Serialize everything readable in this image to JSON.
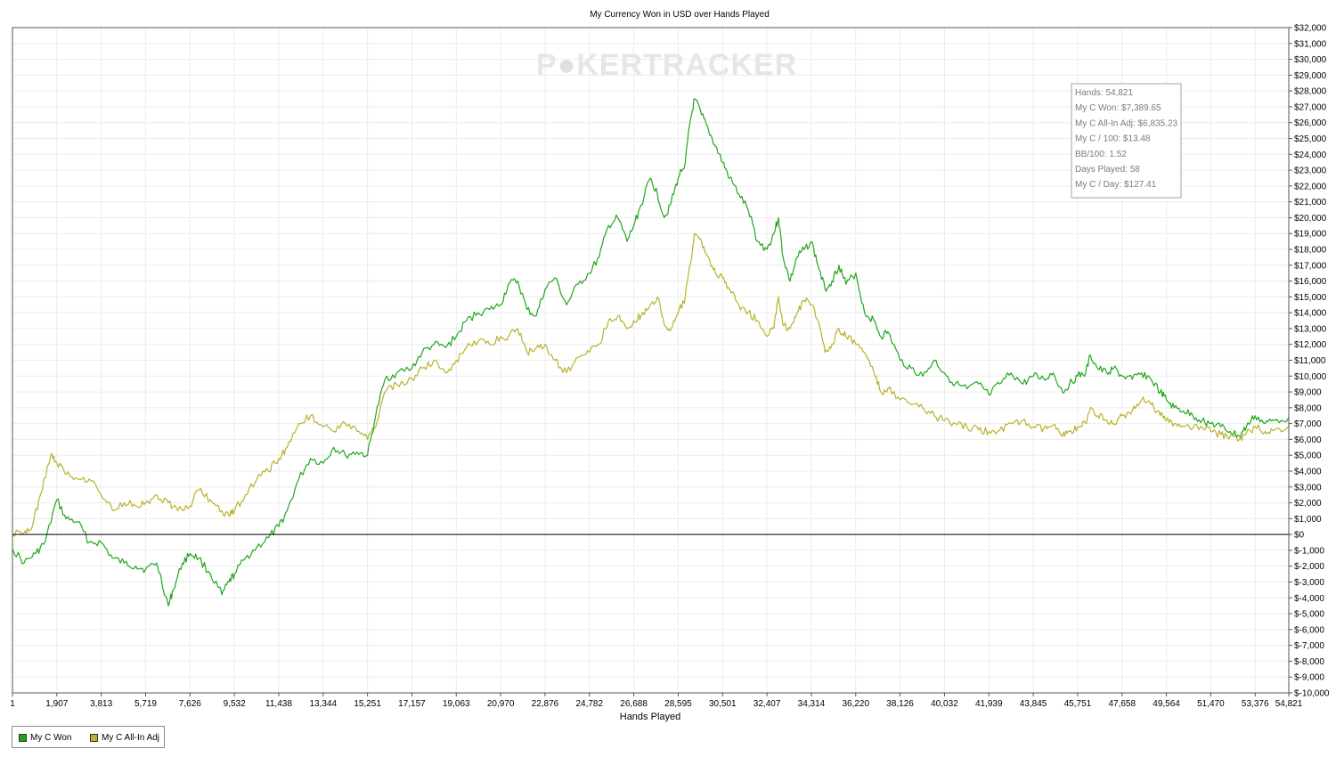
{
  "colors": {
    "won": "#22a51c",
    "allin": "#b8b22c",
    "grid": "#ececec",
    "zero_line": "#000000",
    "watermark": "#e6e6e6",
    "watermark_o": "#e0e0e0"
  },
  "watermark": {
    "left": "P",
    "icon": "poker-chip-icon",
    "right": "KER",
    "tail": "TRACKER"
  },
  "info_box": {
    "lines": [
      "Hands: 54,821",
      "My C Won: $7,389.65",
      "My C All-In Adj: $6,835.23",
      "My C / 100: $13.48",
      "BB/100: 1.52",
      "Days Played: 58",
      "My C / Day: $127.41"
    ]
  },
  "chart_data": {
    "type": "line",
    "title": "My Currency Won in USD over Hands Played",
    "xlabel": "Hands Played",
    "ylabel": "",
    "xlim": [
      1,
      54821
    ],
    "ylim": [
      -10000,
      32000
    ],
    "y_ticks": [
      -10000,
      -9000,
      -8000,
      -7000,
      -6000,
      -5000,
      -4000,
      -3000,
      -2000,
      -1000,
      0,
      1000,
      2000,
      3000,
      4000,
      5000,
      6000,
      7000,
      8000,
      9000,
      10000,
      11000,
      12000,
      13000,
      14000,
      15000,
      16000,
      17000,
      18000,
      19000,
      20000,
      21000,
      22000,
      23000,
      24000,
      25000,
      26000,
      27000,
      28000,
      29000,
      30000,
      31000,
      32000
    ],
    "y_tick_labels": [
      "$-10,000",
      "$-9,000",
      "$-8,000",
      "$-7,000",
      "$-6,000",
      "$-5,000",
      "$-4,000",
      "$-3,000",
      "$-2,000",
      "$-1,000",
      "$0",
      "$1,000",
      "$2,000",
      "$3,000",
      "$4,000",
      "$5,000",
      "$6,000",
      "$7,000",
      "$8,000",
      "$9,000",
      "$10,000",
      "$11,000",
      "$12,000",
      "$13,000",
      "$14,000",
      "$15,000",
      "$16,000",
      "$17,000",
      "$18,000",
      "$19,000",
      "$20,000",
      "$21,000",
      "$22,000",
      "$23,000",
      "$24,000",
      "$25,000",
      "$26,000",
      "$27,000",
      "$28,000",
      "$29,000",
      "$30,000",
      "$31,000",
      "$32,000"
    ],
    "x_ticks": [
      1,
      1907,
      3813,
      5719,
      7626,
      9532,
      11438,
      13344,
      15251,
      17157,
      19063,
      20970,
      22876,
      24782,
      26688,
      28595,
      30501,
      32407,
      34314,
      36220,
      38126,
      40032,
      41939,
      43845,
      45751,
      47658,
      49564,
      51470,
      53376,
      54821
    ],
    "x_tick_labels": [
      "1",
      "1,907",
      "3,813",
      "5,719",
      "7,626",
      "9,532",
      "11,438",
      "13,344",
      "15,251",
      "17,157",
      "19,063",
      "20,970",
      "22,876",
      "24,782",
      "26,688",
      "28,595",
      "30,501",
      "32,407",
      "34,314",
      "36,220",
      "38,126",
      "40,032",
      "41,939",
      "43,845",
      "45,751",
      "47,658",
      "49,564",
      "51,470",
      "53,376",
      "54,821"
    ],
    "grid": true,
    "legend_position": "bottom-left",
    "series": [
      {
        "name": "My C Won",
        "x": [
          1,
          500,
          1000,
          1400,
          1907,
          2300,
          2800,
          3300,
          3813,
          4300,
          4800,
          5300,
          5719,
          6200,
          6700,
          6900,
          7300,
          7626,
          8000,
          8500,
          9000,
          9300,
          9532,
          10000,
          10500,
          11000,
          11438,
          11800,
          12300,
          12800,
          13344,
          13800,
          14300,
          14800,
          15251,
          15600,
          16000,
          16500,
          17157,
          17600,
          18100,
          18600,
          19063,
          19500,
          20000,
          20500,
          20970,
          21300,
          21700,
          22100,
          22500,
          22876,
          23300,
          23800,
          24300,
          24782,
          25200,
          25600,
          26000,
          26400,
          26688,
          27000,
          27400,
          27700,
          28000,
          28300,
          28595,
          28900,
          29100,
          29300,
          29600,
          29900,
          30200,
          30501,
          30800,
          31200,
          31600,
          32000,
          32407,
          32700,
          32900,
          33100,
          33400,
          33700,
          34000,
          34314,
          34600,
          34900,
          35200,
          35500,
          35800,
          36220,
          36600,
          37000,
          37300,
          37600,
          38126,
          38600,
          39100,
          39600,
          40032,
          40500,
          41000,
          41500,
          41939,
          42400,
          42900,
          43400,
          43845,
          44300,
          44700,
          45100,
          45400,
          45751,
          46100,
          46300,
          46600,
          47000,
          47300,
          47658,
          48100,
          48500,
          48900,
          49300,
          49564,
          49900,
          50300,
          50700,
          51100,
          51470,
          51900,
          52300,
          52700,
          53000,
          53376,
          53800,
          54200,
          54821
        ],
        "values": [
          -900,
          -1800,
          -1200,
          -500,
          2200,
          1000,
          800,
          -500,
          -500,
          -1500,
          -1800,
          -2000,
          -2200,
          -1800,
          -4500,
          -3500,
          -1800,
          -1200,
          -1500,
          -2500,
          -3800,
          -3000,
          -2500,
          -1500,
          -800,
          -200,
          500,
          1500,
          3500,
          4800,
          4500,
          5500,
          5000,
          5200,
          5000,
          7500,
          9800,
          10200,
          10500,
          11500,
          12000,
          11800,
          12500,
          13500,
          14000,
          14200,
          14500,
          15800,
          16000,
          14200,
          13800,
          15500,
          16200,
          14500,
          15800,
          16500,
          17500,
          19500,
          20000,
          18500,
          19500,
          20800,
          22500,
          21500,
          20000,
          21000,
          22500,
          23500,
          26000,
          27500,
          26500,
          25500,
          24500,
          23500,
          22500,
          21500,
          20500,
          18500,
          18000,
          19000,
          20000,
          17500,
          16000,
          17500,
          18000,
          18500,
          17000,
          15500,
          16000,
          17000,
          15800,
          16500,
          14000,
          13500,
          12500,
          12800,
          11000,
          10500,
          10000,
          11000,
          10200,
          9500,
          9200,
          9500,
          8800,
          9500,
          10200,
          9500,
          10000,
          9800,
          10200,
          9000,
          9500,
          10000,
          10200,
          11300,
          10500,
          10200,
          10500,
          10000,
          9800,
          10200,
          9800,
          9000,
          8500,
          8000,
          7800,
          7500,
          7200,
          7000,
          6800,
          6500,
          6200,
          6800,
          7500,
          7000,
          7200,
          7390
        ]
      },
      {
        "name": "My C All-In Adj",
        "x": [
          1,
          500,
          800,
          1200,
          1650,
          1907,
          2300,
          2800,
          3300,
          3813,
          4300,
          4800,
          5300,
          5719,
          6200,
          6700,
          7100,
          7626,
          8000,
          8500,
          9000,
          9300,
          9532,
          10000,
          10500,
          11000,
          11438,
          11800,
          12300,
          12800,
          13344,
          13800,
          14300,
          14800,
          15251,
          15600,
          16000,
          16500,
          17157,
          17600,
          18100,
          18600,
          19063,
          19500,
          20000,
          20500,
          20970,
          21300,
          21700,
          22100,
          22500,
          22876,
          23300,
          23800,
          24300,
          24782,
          25200,
          25600,
          26000,
          26400,
          26688,
          27000,
          27400,
          27700,
          28000,
          28300,
          28595,
          28900,
          29100,
          29300,
          29600,
          29900,
          30200,
          30501,
          30800,
          31200,
          31600,
          32000,
          32407,
          32700,
          32900,
          33100,
          33400,
          33700,
          34000,
          34314,
          34600,
          34900,
          35200,
          35500,
          35800,
          36220,
          36600,
          37000,
          37300,
          37600,
          38126,
          38600,
          39100,
          39600,
          40032,
          40500,
          41000,
          41500,
          41939,
          42400,
          42900,
          43400,
          43845,
          44300,
          44700,
          45100,
          45400,
          45751,
          46100,
          46300,
          46600,
          47000,
          47300,
          47658,
          48100,
          48500,
          48900,
          49300,
          49564,
          49900,
          50300,
          50700,
          51100,
          51470,
          51900,
          52300,
          52700,
          53000,
          53376,
          53800,
          54200,
          54821
        ],
        "values": [
          0,
          100,
          300,
          2500,
          5000,
          4500,
          3800,
          3500,
          3500,
          2500,
          1500,
          2000,
          1800,
          2000,
          2500,
          2000,
          1500,
          1800,
          2800,
          2200,
          1500,
          1200,
          1500,
          2500,
          3500,
          4000,
          4800,
          5500,
          7000,
          7500,
          6800,
          6500,
          7000,
          6500,
          6000,
          6800,
          9000,
          9500,
          9800,
          10500,
          11000,
          10200,
          11000,
          11800,
          12200,
          12000,
          12500,
          12500,
          13000,
          11500,
          11800,
          12000,
          11000,
          10200,
          11200,
          11500,
          12000,
          13500,
          13800,
          13000,
          13500,
          13800,
          14500,
          15000,
          13200,
          13000,
          14000,
          15000,
          17000,
          19000,
          18500,
          17500,
          16500,
          16200,
          15500,
          14500,
          14000,
          13500,
          12500,
          13000,
          15000,
          13200,
          13000,
          14000,
          14800,
          14500,
          13500,
          11500,
          12000,
          13000,
          12500,
          12000,
          11500,
          10200,
          9000,
          9200,
          8500,
          8200,
          8000,
          7500,
          7200,
          7000,
          6800,
          6600,
          6500,
          6600,
          7000,
          7200,
          6800,
          6700,
          6900,
          6200,
          6500,
          6800,
          7000,
          8000,
          7500,
          7200,
          7000,
          7500,
          7800,
          8500,
          8200,
          7500,
          7200,
          7000,
          6800,
          6700,
          6800,
          6500,
          6300,
          6200,
          6000,
          6400,
          6800,
          6500,
          6600,
          6835
        ]
      }
    ]
  }
}
